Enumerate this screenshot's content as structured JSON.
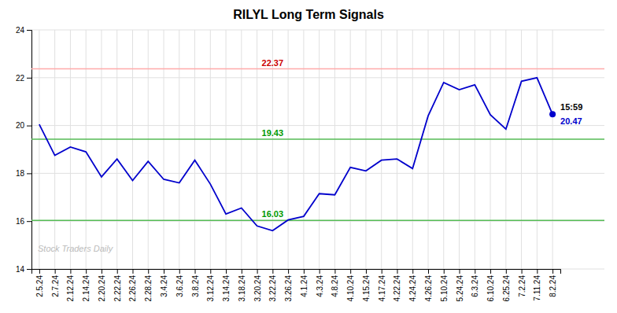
{
  "chart_data": {
    "type": "line",
    "title": "RILYL Long Term Signals",
    "categories": [
      "2.5.24",
      "2.7.24",
      "2.12.24",
      "2.14.24",
      "2.20.24",
      "2.22.24",
      "2.26.24",
      "2.28.24",
      "3.4.24",
      "3.6.24",
      "3.8.24",
      "3.12.24",
      "3.14.24",
      "3.18.24",
      "3.20.24",
      "3.22.24",
      "3.26.24",
      "4.1.24",
      "4.3.24",
      "4.8.24",
      "4.10.24",
      "4.15.24",
      "4.17.24",
      "4.22.24",
      "4.24.24",
      "4.26.24",
      "5.10.24",
      "5.24.24",
      "6.3.24",
      "6.10.24",
      "6.25.24",
      "7.2.24",
      "7.11.24",
      "8.2.24"
    ],
    "values": [
      20.05,
      18.75,
      19.1,
      18.9,
      17.85,
      18.6,
      17.7,
      18.5,
      17.75,
      17.6,
      18.55,
      17.55,
      16.3,
      16.55,
      15.8,
      15.6,
      16.05,
      16.2,
      17.15,
      17.1,
      18.25,
      18.1,
      18.55,
      18.6,
      18.2,
      20.4,
      21.8,
      21.5,
      21.7,
      20.45,
      19.85,
      21.85,
      22.0,
      20.47
    ],
    "color": "#0000cc",
    "reference_lines": [
      {
        "value": 22.37,
        "color": "#ffaaaa",
        "label_color": "#cc0000"
      },
      {
        "value": 19.43,
        "color": "#55bb55",
        "label_color": "#009900"
      },
      {
        "value": 16.03,
        "color": "#55bb55",
        "label_color": "#009900"
      }
    ],
    "annotations": [
      {
        "text": "15:59",
        "color": "#000000"
      },
      {
        "text": "20.47",
        "color": "#0000cc"
      }
    ],
    "watermark": {
      "text": "Stock Traders Daily",
      "color": "#bbbbbb"
    },
    "ylim": [
      14,
      24
    ],
    "yticks": [
      14,
      16,
      18,
      20,
      22,
      24
    ],
    "grid": true
  }
}
